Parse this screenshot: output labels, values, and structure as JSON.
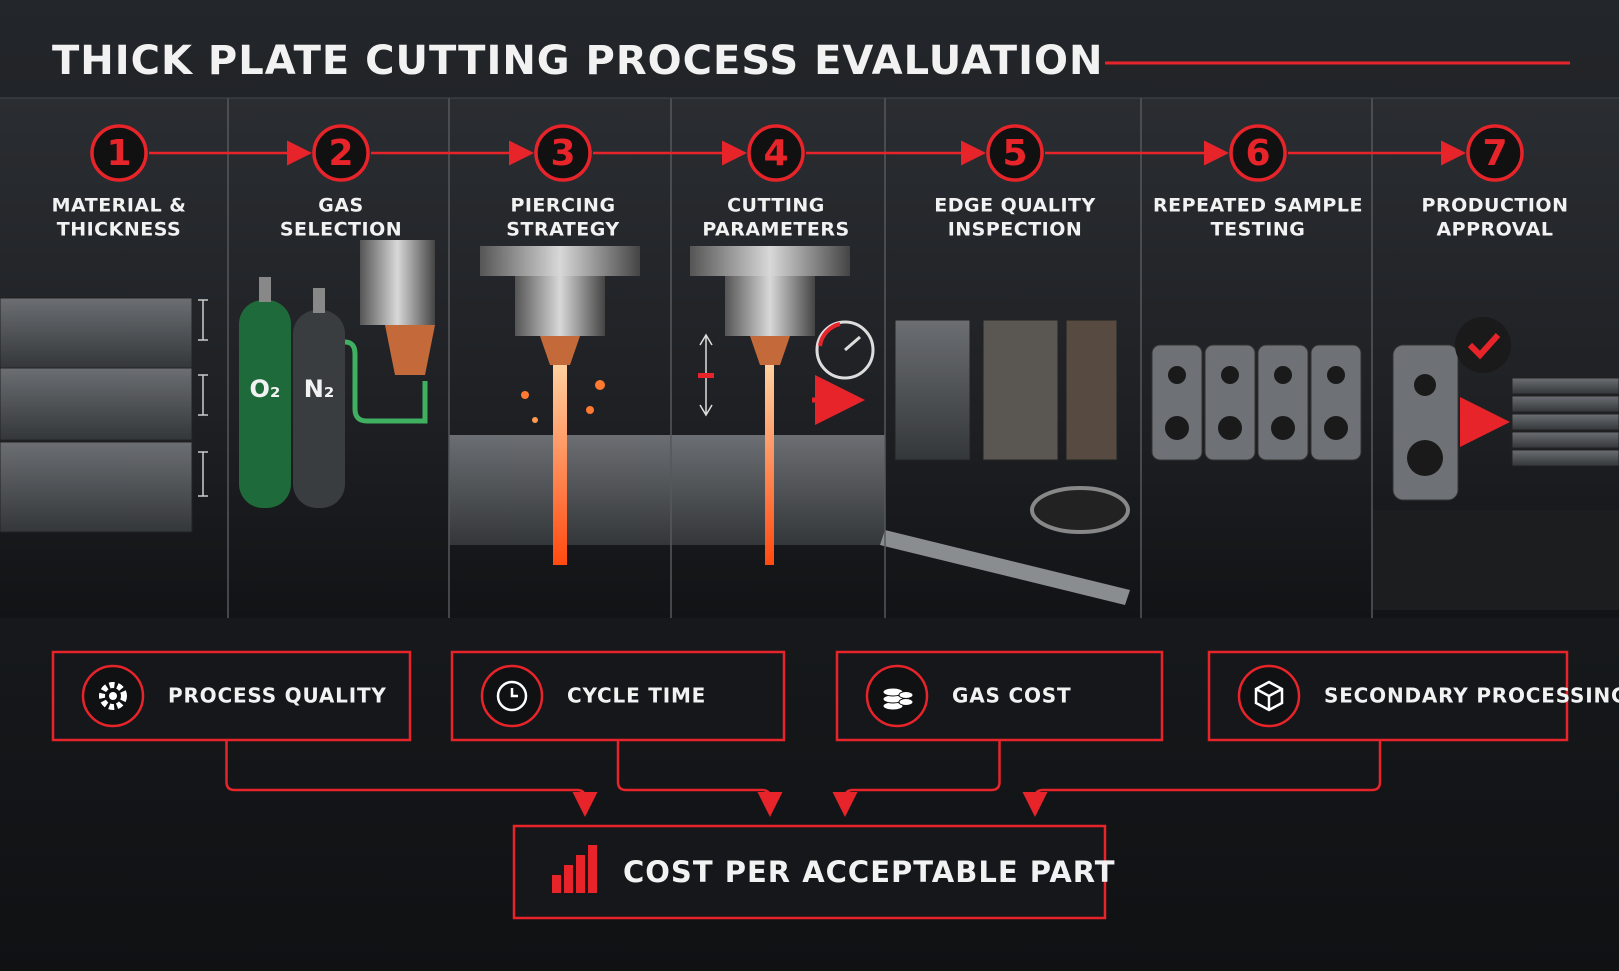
{
  "header": {
    "title": "THICK PLATE CUTTING PROCESS EVALUATION"
  },
  "steps": [
    {
      "number": 1,
      "label": [
        "MATERIAL &",
        "THICKNESS"
      ]
    },
    {
      "number": 2,
      "label": [
        "GAS",
        "SELECTION"
      ]
    },
    {
      "number": 3,
      "label": [
        "PIERCING",
        "STRATEGY"
      ]
    },
    {
      "number": 4,
      "label": [
        "CUTTING",
        "PARAMETERS"
      ]
    },
    {
      "number": 5,
      "label": [
        "EDGE QUALITY",
        "INSPECTION"
      ]
    },
    {
      "number": 6,
      "label": [
        "REPEATED SAMPLE",
        "TESTING"
      ]
    },
    {
      "number": 7,
      "label": [
        "PRODUCTION",
        "APPROVAL"
      ]
    }
  ],
  "gas_labels": [
    "O₂",
    "N₂"
  ],
  "metrics": [
    "PROCESS QUALITY",
    "CYCLE TIME",
    "GAS COST",
    "SECONDARY PROCESSING"
  ],
  "result": "COST PER ACCEPTABLE PART"
}
